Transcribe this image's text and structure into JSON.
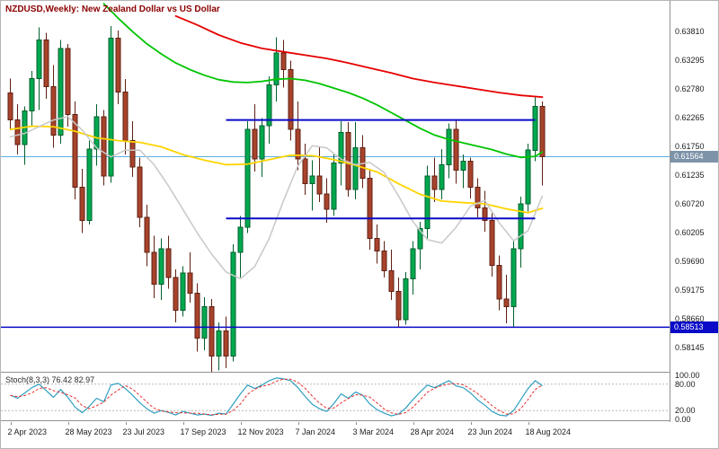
{
  "header": {
    "title": "NZDUSD,Weekly: New Zealand Dollar vs US Dollar"
  },
  "chart_data": {
    "main": {
      "type": "candlestick",
      "symbol": "NZDUSD",
      "timeframe": "Weekly",
      "ylim": [
        0.577,
        0.6435
      ],
      "x_step": 8,
      "x_offset": 8,
      "colors": {
        "up_fill": "#00a94f",
        "up_stroke": "#005f2c",
        "down_fill": "#a8432c",
        "down_stroke": "#5f2012",
        "ma_red": "#e60000",
        "ma_green": "#00c400",
        "ma_yellow": "#ffd400",
        "ma_gray": "#c8c8c8",
        "level_blue": "#0a0ac8",
        "current_line": "#5ab0e0",
        "current_tag": "#7d93a8"
      },
      "price_ticks": [
        "0.63810",
        "0.63295",
        "0.62780",
        "0.62265",
        "0.61750",
        "0.61235",
        "0.60720",
        "0.60205",
        "0.59690",
        "0.59175",
        "0.58660",
        "0.58145"
      ],
      "date_labels": [
        {
          "index": 0,
          "label": "2 Apr 2023"
        },
        {
          "index": 8,
          "label": "28 May 2023"
        },
        {
          "index": 16,
          "label": "23 Jul 2023"
        },
        {
          "index": 24,
          "label": "17 Sep 2023"
        },
        {
          "index": 32,
          "label": "12 Nov 2023"
        },
        {
          "index": 40,
          "label": "7 Jan 2024"
        },
        {
          "index": 48,
          "label": "3 Mar 2024"
        },
        {
          "index": 56,
          "label": "28 Apr 2024"
        },
        {
          "index": 64,
          "label": "23 Jun 2024"
        },
        {
          "index": 72,
          "label": "18 Aug 2024"
        }
      ],
      "current_price": {
        "price": 0.61564,
        "label": "0.61564"
      },
      "level_line": {
        "price": 0.58513,
        "label": "0.58513"
      },
      "segments": [
        {
          "price": 0.6222,
          "from": 30,
          "to": 73
        },
        {
          "price": 0.6046,
          "from": 30,
          "to": 73
        }
      ],
      "candles": [
        [
          0.627,
          0.6296,
          0.6205,
          0.6222
        ],
        [
          0.6222,
          0.625,
          0.616,
          0.6178
        ],
        [
          0.6178,
          0.6246,
          0.6142,
          0.6238
        ],
        [
          0.6238,
          0.631,
          0.621,
          0.6296
        ],
        [
          0.6296,
          0.6388,
          0.624,
          0.6365
        ],
        [
          0.6365,
          0.6378,
          0.626,
          0.6282
        ],
        [
          0.6282,
          0.632,
          0.6172,
          0.6195
        ],
        [
          0.6195,
          0.6365,
          0.618,
          0.635
        ],
        [
          0.635,
          0.6358,
          0.621,
          0.6232
        ],
        [
          0.6232,
          0.6255,
          0.608,
          0.6102
        ],
        [
          0.6102,
          0.6135,
          0.602,
          0.6042
        ],
        [
          0.6042,
          0.6185,
          0.6035,
          0.617
        ],
        [
          0.617,
          0.625,
          0.614,
          0.6228
        ],
        [
          0.6228,
          0.624,
          0.6105,
          0.6122
        ],
        [
          0.6122,
          0.639,
          0.611,
          0.6368
        ],
        [
          0.6368,
          0.6382,
          0.625,
          0.6272
        ],
        [
          0.6272,
          0.6295,
          0.616,
          0.6185
        ],
        [
          0.6185,
          0.622,
          0.612,
          0.6138
        ],
        [
          0.6138,
          0.6155,
          0.603,
          0.6048
        ],
        [
          0.6048,
          0.607,
          0.596,
          0.5985
        ],
        [
          0.5985,
          0.6015,
          0.5903,
          0.5928
        ],
        [
          0.5928,
          0.601,
          0.59,
          0.5992
        ],
        [
          0.5992,
          0.6015,
          0.592,
          0.594
        ],
        [
          0.594,
          0.5955,
          0.586,
          0.5882
        ],
        [
          0.5882,
          0.596,
          0.587,
          0.5948
        ],
        [
          0.5948,
          0.5985,
          0.5895,
          0.5912
        ],
        [
          0.5912,
          0.593,
          0.5808,
          0.5832
        ],
        [
          0.5832,
          0.5905,
          0.581,
          0.5888
        ],
        [
          0.5888,
          0.5902,
          0.5772,
          0.58
        ],
        [
          0.58,
          0.586,
          0.5774,
          0.5845
        ],
        [
          0.5845,
          0.587,
          0.5778,
          0.58
        ],
        [
          0.58,
          0.6,
          0.579,
          0.5985
        ],
        [
          0.5985,
          0.605,
          0.594,
          0.603
        ],
        [
          0.603,
          0.622,
          0.602,
          0.6205
        ],
        [
          0.6205,
          0.625,
          0.613,
          0.6152
        ],
        [
          0.6152,
          0.6225,
          0.612,
          0.6212
        ],
        [
          0.6212,
          0.63,
          0.618,
          0.6285
        ],
        [
          0.6285,
          0.637,
          0.6255,
          0.6342
        ],
        [
          0.6342,
          0.6365,
          0.628,
          0.6312
        ],
        [
          0.6312,
          0.6328,
          0.6185,
          0.6205
        ],
        [
          0.6205,
          0.6255,
          0.6132,
          0.6152
        ],
        [
          0.6152,
          0.618,
          0.6088,
          0.6108
        ],
        [
          0.6108,
          0.615,
          0.606,
          0.6122
        ],
        [
          0.6122,
          0.6175,
          0.6075,
          0.609
        ],
        [
          0.609,
          0.6118,
          0.6038,
          0.6062
        ],
        [
          0.6062,
          0.616,
          0.605,
          0.6145
        ],
        [
          0.6145,
          0.622,
          0.6105,
          0.62
        ],
        [
          0.62,
          0.6218,
          0.6085,
          0.6098
        ],
        [
          0.6098,
          0.6218,
          0.608,
          0.6172
        ],
        [
          0.6172,
          0.6195,
          0.61,
          0.6118
        ],
        [
          0.6118,
          0.6135,
          0.599,
          0.601
        ],
        [
          0.601,
          0.6035,
          0.5965,
          0.5988
        ],
        [
          0.5988,
          0.6005,
          0.594,
          0.5952
        ],
        [
          0.5952,
          0.599,
          0.59,
          0.5915
        ],
        [
          0.5915,
          0.594,
          0.5851,
          0.5865
        ],
        [
          0.5865,
          0.595,
          0.5856,
          0.5938
        ],
        [
          0.5938,
          0.6005,
          0.591,
          0.5992
        ],
        [
          0.5992,
          0.604,
          0.5955,
          0.6028
        ],
        [
          0.6028,
          0.614,
          0.601,
          0.6122
        ],
        [
          0.6122,
          0.6155,
          0.6075,
          0.6098
        ],
        [
          0.6098,
          0.617,
          0.608,
          0.6142
        ],
        [
          0.6142,
          0.6216,
          0.6118,
          0.6205
        ],
        [
          0.6205,
          0.6222,
          0.6108,
          0.6132
        ],
        [
          0.6132,
          0.616,
          0.61,
          0.6148
        ],
        [
          0.6148,
          0.6155,
          0.6082,
          0.6102
        ],
        [
          0.6102,
          0.6118,
          0.6048,
          0.6065
        ],
        [
          0.6065,
          0.6095,
          0.6022,
          0.6042
        ],
        [
          0.6042,
          0.6055,
          0.5942,
          0.5962
        ],
        [
          0.5962,
          0.598,
          0.5882,
          0.5902
        ],
        [
          0.5902,
          0.5945,
          0.5858,
          0.5888
        ],
        [
          0.5888,
          0.6005,
          0.585,
          0.5992
        ],
        [
          0.5992,
          0.6085,
          0.5958,
          0.6072
        ],
        [
          0.6072,
          0.618,
          0.6058,
          0.6168
        ],
        [
          0.6168,
          0.6262,
          0.6148,
          0.6246
        ],
        [
          0.6246,
          0.6255,
          0.6105,
          0.61564
        ]
      ],
      "moving_averages": [
        {
          "name": "slow-red",
          "color": "#e60000",
          "width": 1.8,
          "points": [
            [
              23,
              0.6408
            ],
            [
              26,
              0.6392
            ],
            [
              29,
              0.6374
            ],
            [
              32,
              0.636
            ],
            [
              35,
              0.635
            ],
            [
              38,
              0.6344
            ],
            [
              41,
              0.6338
            ],
            [
              44,
              0.6332
            ],
            [
              47,
              0.6324
            ],
            [
              50,
              0.6315
            ],
            [
              53,
              0.6306
            ],
            [
              56,
              0.6296
            ],
            [
              59,
              0.6289
            ],
            [
              62,
              0.6283
            ],
            [
              65,
              0.6277
            ],
            [
              68,
              0.6271
            ],
            [
              71,
              0.6266
            ],
            [
              74,
              0.6263
            ]
          ]
        },
        {
          "name": "medium-green",
          "color": "#00c400",
          "width": 1.8,
          "points": [
            [
              13,
              0.643
            ],
            [
              15,
              0.6404
            ],
            [
              17,
              0.638
            ],
            [
              19,
              0.6358
            ],
            [
              21,
              0.634
            ],
            [
              23,
              0.6324
            ],
            [
              25,
              0.6312
            ],
            [
              27,
              0.6302
            ],
            [
              29,
              0.6294
            ],
            [
              31,
              0.629
            ],
            [
              33,
              0.6289
            ],
            [
              35,
              0.6291
            ],
            [
              37,
              0.6295
            ],
            [
              39,
              0.6296
            ],
            [
              41,
              0.6293
            ],
            [
              43,
              0.6287
            ],
            [
              45,
              0.6279
            ],
            [
              47,
              0.6271
            ],
            [
              49,
              0.6261
            ],
            [
              51,
              0.6249
            ],
            [
              53,
              0.6235
            ],
            [
              55,
              0.6221
            ],
            [
              57,
              0.6207
            ],
            [
              59,
              0.6195
            ],
            [
              61,
              0.6187
            ],
            [
              63,
              0.6181
            ],
            [
              65,
              0.6175
            ],
            [
              67,
              0.6169
            ],
            [
              69,
              0.6161
            ],
            [
              71,
              0.6155
            ],
            [
              73,
              0.6157
            ],
            [
              74,
              0.6165
            ]
          ]
        },
        {
          "name": "fast-yellow",
          "color": "#ffd400",
          "width": 1.8,
          "points": [
            [
              0,
              0.6205
            ],
            [
              3,
              0.6211
            ],
            [
              6,
              0.621
            ],
            [
              9,
              0.6202
            ],
            [
              12,
              0.619
            ],
            [
              15,
              0.6185
            ],
            [
              18,
              0.6182
            ],
            [
              21,
              0.6174
            ],
            [
              24,
              0.616
            ],
            [
              27,
              0.615
            ],
            [
              30,
              0.6142
            ],
            [
              33,
              0.6143
            ],
            [
              36,
              0.6151
            ],
            [
              39,
              0.6159
            ],
            [
              42,
              0.6158
            ],
            [
              45,
              0.6151
            ],
            [
              48,
              0.6141
            ],
            [
              51,
              0.6129
            ],
            [
              54,
              0.6108
            ],
            [
              57,
              0.6089
            ],
            [
              60,
              0.6077
            ],
            [
              63,
              0.6074
            ],
            [
              66,
              0.6072
            ],
            [
              69,
              0.6063
            ],
            [
              72,
              0.6056
            ],
            [
              74,
              0.6064
            ]
          ]
        },
        {
          "name": "fast-gray",
          "color": "#c8c8c8",
          "width": 1.5,
          "points": [
            [
              0,
              0.6192
            ],
            [
              2,
              0.6198
            ],
            [
              4,
              0.621
            ],
            [
              6,
              0.6222
            ],
            [
              8,
              0.6228
            ],
            [
              10,
              0.6204
            ],
            [
              12,
              0.6172
            ],
            [
              14,
              0.6156
            ],
            [
              16,
              0.6168
            ],
            [
              18,
              0.6168
            ],
            [
              20,
              0.6142
            ],
            [
              22,
              0.6104
            ],
            [
              24,
              0.6062
            ],
            [
              26,
              0.602
            ],
            [
              28,
              0.5982
            ],
            [
              30,
              0.595
            ],
            [
              32,
              0.5938
            ],
            [
              34,
              0.596
            ],
            [
              36,
              0.601
            ],
            [
              38,
              0.6078
            ],
            [
              40,
              0.614
            ],
            [
              42,
              0.6176
            ],
            [
              44,
              0.6172
            ],
            [
              46,
              0.6152
            ],
            [
              48,
              0.6142
            ],
            [
              50,
              0.6146
            ],
            [
              52,
              0.6128
            ],
            [
              54,
              0.6086
            ],
            [
              56,
              0.604
            ],
            [
              58,
              0.6008
            ],
            [
              60,
              0.6002
            ],
            [
              62,
              0.603
            ],
            [
              64,
              0.6068
            ],
            [
              66,
              0.6078
            ],
            [
              68,
              0.6038
            ],
            [
              70,
              0.6006
            ],
            [
              72,
              0.6024
            ],
            [
              74,
              0.6086
            ]
          ]
        }
      ]
    },
    "stochastic": {
      "type": "line",
      "name": "Stoch(8,3,3)",
      "value_k": "76.42",
      "value_d": "82.97",
      "color_k": "#2f9fc0",
      "color_d": "#e83030",
      "levels": [
        80,
        20
      ],
      "axis_labels": [
        "100.00",
        "80.00",
        "20.00",
        "0.00"
      ],
      "k": [
        55,
        48,
        60,
        72,
        80,
        65,
        50,
        68,
        50,
        28,
        15,
        30,
        48,
        40,
        78,
        82,
        70,
        55,
        38,
        24,
        14,
        20,
        16,
        10,
        18,
        14,
        10,
        12,
        9,
        14,
        12,
        35,
        58,
        78,
        70,
        78,
        88,
        94,
        92,
        88,
        72,
        52,
        34,
        24,
        18,
        36,
        58,
        48,
        62,
        55,
        35,
        22,
        14,
        8,
        12,
        26,
        45,
        62,
        78,
        72,
        80,
        88,
        76,
        72,
        60,
        44,
        32,
        18,
        10,
        8,
        20,
        45,
        70,
        88,
        76.42
      ]
    }
  }
}
